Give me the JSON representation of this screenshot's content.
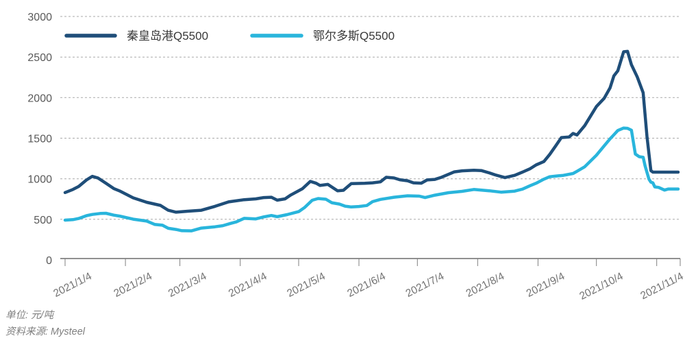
{
  "chart_data": {
    "type": "line",
    "title": "",
    "unit_note": "单位: 元/吨",
    "source_note": "资料来源: Mysteel",
    "x_start": "2021/1/4",
    "x_end": "2021/11/15",
    "ylim": [
      0,
      3000
    ],
    "yticks": [
      0,
      500,
      1000,
      1500,
      2000,
      2500,
      3000
    ],
    "xtick_labels": [
      "2021/1/4",
      "2021/2/4",
      "2021/3/4",
      "2021/4/4",
      "2021/5/4",
      "2021/6/4",
      "2021/7/4",
      "2021/8/4",
      "2021/9/4",
      "2021/10/4",
      "2021/11/4"
    ],
    "grid": "horizontal-dashed",
    "legend_position": "top-left-inside",
    "series": [
      {
        "name": "秦皇岛港Q5500",
        "color": "#1f4e79",
        "points": [
          [
            "2021/1/4",
            830
          ],
          [
            "2021/1/8",
            868
          ],
          [
            "2021/1/11",
            905
          ],
          [
            "2021/1/15",
            985
          ],
          [
            "2021/1/18",
            1030
          ],
          [
            "2021/1/21",
            1008
          ],
          [
            "2021/1/25",
            945
          ],
          [
            "2021/1/29",
            880
          ],
          [
            "2021/2/1",
            850
          ],
          [
            "2021/2/8",
            765
          ],
          [
            "2021/2/15",
            710
          ],
          [
            "2021/2/22",
            672
          ],
          [
            "2021/2/26",
            612
          ],
          [
            "2021/3/2",
            588
          ],
          [
            "2021/3/8",
            600
          ],
          [
            "2021/3/15",
            612
          ],
          [
            "2021/3/22",
            660
          ],
          [
            "2021/3/29",
            715
          ],
          [
            "2021/4/6",
            742
          ],
          [
            "2021/4/12",
            752
          ],
          [
            "2021/4/16",
            768
          ],
          [
            "2021/4/20",
            772
          ],
          [
            "2021/4/23",
            736
          ],
          [
            "2021/4/27",
            752
          ],
          [
            "2021/4/30",
            800
          ],
          [
            "2021/5/6",
            878
          ],
          [
            "2021/5/10",
            968
          ],
          [
            "2021/5/13",
            945
          ],
          [
            "2021/5/15",
            918
          ],
          [
            "2021/5/19",
            930
          ],
          [
            "2021/5/24",
            852
          ],
          [
            "2021/5/27",
            858
          ],
          [
            "2021/5/31",
            940
          ],
          [
            "2021/6/7",
            944
          ],
          [
            "2021/6/11",
            950
          ],
          [
            "2021/6/15",
            962
          ],
          [
            "2021/6/18",
            1018
          ],
          [
            "2021/6/22",
            1010
          ],
          [
            "2021/6/25",
            988
          ],
          [
            "2021/6/29",
            975
          ],
          [
            "2021/7/2",
            950
          ],
          [
            "2021/7/6",
            946
          ],
          [
            "2021/7/9",
            985
          ],
          [
            "2021/7/13",
            992
          ],
          [
            "2021/7/16",
            1015
          ],
          [
            "2021/7/20",
            1055
          ],
          [
            "2021/7/23",
            1085
          ],
          [
            "2021/7/27",
            1098
          ],
          [
            "2021/8/2",
            1105
          ],
          [
            "2021/8/6",
            1100
          ],
          [
            "2021/8/10",
            1072
          ],
          [
            "2021/8/13",
            1048
          ],
          [
            "2021/8/18",
            1015
          ],
          [
            "2021/8/23",
            1042
          ],
          [
            "2021/8/27",
            1082
          ],
          [
            "2021/8/31",
            1125
          ],
          [
            "2021/9/3",
            1170
          ],
          [
            "2021/9/7",
            1212
          ],
          [
            "2021/9/10",
            1300
          ],
          [
            "2021/9/13",
            1402
          ],
          [
            "2021/9/16",
            1508
          ],
          [
            "2021/9/20",
            1515
          ],
          [
            "2021/9/22",
            1558
          ],
          [
            "2021/9/24",
            1540
          ],
          [
            "2021/9/28",
            1655
          ],
          [
            "2021/10/4",
            1890
          ],
          [
            "2021/10/8",
            1992
          ],
          [
            "2021/10/11",
            2120
          ],
          [
            "2021/10/13",
            2268
          ],
          [
            "2021/10/15",
            2330
          ],
          [
            "2021/10/18",
            2565
          ],
          [
            "2021/10/20",
            2570
          ],
          [
            "2021/10/22",
            2405
          ],
          [
            "2021/10/25",
            2255
          ],
          [
            "2021/10/28",
            2060
          ],
          [
            "2021/10/30",
            1520
          ],
          [
            "2021/11/1",
            1100
          ],
          [
            "2021/11/2",
            1082
          ],
          [
            "2021/11/8",
            1082
          ],
          [
            "2021/11/15",
            1082
          ]
        ]
      },
      {
        "name": "鄂尔多斯Q5500",
        "color": "#29b5dc",
        "points": [
          [
            "2021/1/4",
            490
          ],
          [
            "2021/1/8",
            496
          ],
          [
            "2021/1/11",
            510
          ],
          [
            "2021/1/15",
            545
          ],
          [
            "2021/1/18",
            560
          ],
          [
            "2021/1/22",
            572
          ],
          [
            "2021/1/25",
            575
          ],
          [
            "2021/1/29",
            552
          ],
          [
            "2021/2/1",
            540
          ],
          [
            "2021/2/8",
            502
          ],
          [
            "2021/2/15",
            478
          ],
          [
            "2021/2/19",
            438
          ],
          [
            "2021/2/23",
            428
          ],
          [
            "2021/2/26",
            390
          ],
          [
            "2021/3/2",
            375
          ],
          [
            "2021/3/5",
            360
          ],
          [
            "2021/3/10",
            358
          ],
          [
            "2021/3/15",
            392
          ],
          [
            "2021/3/22",
            408
          ],
          [
            "2021/3/26",
            422
          ],
          [
            "2021/3/30",
            450
          ],
          [
            "2021/4/2",
            468
          ],
          [
            "2021/4/6",
            512
          ],
          [
            "2021/4/12",
            505
          ],
          [
            "2021/4/16",
            530
          ],
          [
            "2021/4/20",
            548
          ],
          [
            "2021/4/23",
            532
          ],
          [
            "2021/4/28",
            558
          ],
          [
            "2021/5/4",
            595
          ],
          [
            "2021/5/7",
            645
          ],
          [
            "2021/5/11",
            735
          ],
          [
            "2021/5/14",
            756
          ],
          [
            "2021/5/18",
            748
          ],
          [
            "2021/5/21",
            705
          ],
          [
            "2021/5/25",
            688
          ],
          [
            "2021/5/28",
            662
          ],
          [
            "2021/5/31",
            652
          ],
          [
            "2021/6/4",
            658
          ],
          [
            "2021/6/8",
            670
          ],
          [
            "2021/6/11",
            718
          ],
          [
            "2021/6/15",
            745
          ],
          [
            "2021/6/22",
            772
          ],
          [
            "2021/6/29",
            790
          ],
          [
            "2021/7/5",
            786
          ],
          [
            "2021/7/8",
            768
          ],
          [
            "2021/7/13",
            798
          ],
          [
            "2021/7/20",
            828
          ],
          [
            "2021/7/27",
            845
          ],
          [
            "2021/8/2",
            868
          ],
          [
            "2021/8/10",
            852
          ],
          [
            "2021/8/16",
            835
          ],
          [
            "2021/8/23",
            848
          ],
          [
            "2021/8/27",
            872
          ],
          [
            "2021/8/31",
            915
          ],
          [
            "2021/9/3",
            945
          ],
          [
            "2021/9/7",
            995
          ],
          [
            "2021/9/10",
            1025
          ],
          [
            "2021/9/14",
            1035
          ],
          [
            "2021/9/17",
            1042
          ],
          [
            "2021/9/22",
            1065
          ],
          [
            "2021/9/24",
            1092
          ],
          [
            "2021/9/28",
            1148
          ],
          [
            "2021/10/4",
            1290
          ],
          [
            "2021/10/8",
            1405
          ],
          [
            "2021/10/11",
            1492
          ],
          [
            "2021/10/13",
            1542
          ],
          [
            "2021/10/15",
            1595
          ],
          [
            "2021/10/18",
            1625
          ],
          [
            "2021/10/20",
            1622
          ],
          [
            "2021/10/22",
            1598
          ],
          [
            "2021/10/24",
            1305
          ],
          [
            "2021/10/26",
            1272
          ],
          [
            "2021/10/28",
            1265
          ],
          [
            "2021/10/29",
            1160
          ],
          [
            "2021/10/31",
            995
          ],
          [
            "2021/11/1",
            958
          ],
          [
            "2021/11/2",
            950
          ],
          [
            "2021/11/3",
            900
          ],
          [
            "2021/11/5",
            893
          ],
          [
            "2021/11/8",
            860
          ],
          [
            "2021/11/10",
            874
          ],
          [
            "2021/11/15",
            874
          ]
        ]
      }
    ]
  }
}
